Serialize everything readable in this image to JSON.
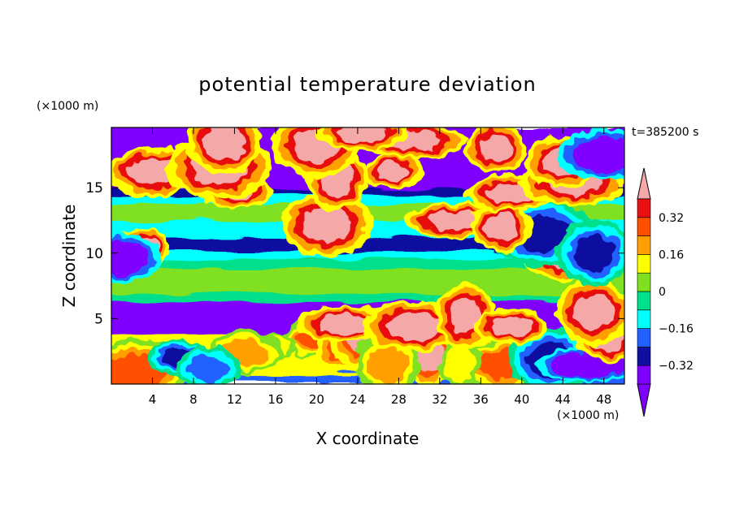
{
  "chart_data": {
    "type": "heatmap",
    "title": "potential temperature deviation",
    "xlabel": "X coordinate",
    "ylabel": "Z coordinate",
    "x_unit_label": "(×1000 m)",
    "y_unit_label": "(×1000 m)",
    "time_label": "t=385200 s",
    "xlim": [
      0,
      50
    ],
    "ylim": [
      0,
      19.6
    ],
    "x_ticks": [
      4,
      8,
      12,
      16,
      20,
      24,
      28,
      32,
      36,
      40,
      44,
      48
    ],
    "y_ticks": [
      5,
      10,
      15
    ],
    "colorbar": {
      "levels": [
        -0.4,
        -0.32,
        -0.24,
        -0.16,
        -0.08,
        0,
        0.08,
        0.16,
        0.24,
        0.32,
        0.4
      ],
      "tick_labels": [
        "0.32",
        "0.16",
        "0",
        "−0.16",
        "−0.32"
      ],
      "tick_values": [
        0.32,
        0.16,
        0,
        -0.16,
        -0.32
      ],
      "colors": [
        "#7f00ff",
        "#1010a0",
        "#2060ff",
        "#00ffff",
        "#00e08c",
        "#80e020",
        "#ffff00",
        "#ffa000",
        "#ff5000",
        "#e81010"
      ],
      "over_color": "#f5a8a8",
      "under_color": "#7f00ff",
      "extend": "both"
    },
    "bands": [
      {
        "z": [
          0,
          0.8
        ],
        "value": -0.2
      },
      {
        "z": [
          0.8,
          3.8
        ],
        "value": 0.1
      },
      {
        "z": [
          3.8,
          5.8
        ],
        "value": -0.42
      },
      {
        "z": [
          5.8,
          6.4
        ],
        "value": -0.36
      },
      {
        "z": [
          6.4,
          6.9
        ],
        "value": -0.05
      },
      {
        "z": [
          6.9,
          8.9
        ],
        "value": 0.06
      },
      {
        "z": [
          8.9,
          9.6
        ],
        "value": -0.05
      },
      {
        "z": [
          9.6,
          10.2
        ],
        "value": -0.14
      },
      {
        "z": [
          10.2,
          11.2
        ],
        "value": -0.3
      },
      {
        "z": [
          11.2,
          12.0
        ],
        "value": -0.14
      },
      {
        "z": [
          12.0,
          12.6
        ],
        "value": -0.1
      },
      {
        "z": [
          12.6,
          13.8
        ],
        "value": 0.03
      },
      {
        "z": [
          13.8,
          14.4
        ],
        "value": -0.12
      },
      {
        "z": [
          14.4,
          15.0
        ],
        "value": -0.26
      },
      {
        "z": [
          15.0,
          15.6
        ],
        "value": -0.4
      },
      {
        "z": [
          15.6,
          17.8
        ],
        "value": -0.44
      },
      {
        "z": [
          17.8,
          19.6
        ],
        "value": -0.44
      }
    ],
    "blobs": [
      {
        "x": 19.5,
        "z": 3.5,
        "value": 0.3
      },
      {
        "x": 23.0,
        "z": 2.8,
        "value": 0.26
      },
      {
        "x": 25.5,
        "z": 3.5,
        "value": 0.42
      },
      {
        "x": 29.0,
        "z": 2.6,
        "value": 0.3
      },
      {
        "x": 31.0,
        "z": 1.9,
        "value": 0.42
      },
      {
        "x": 27.0,
        "z": 1.5,
        "value": 0.2
      },
      {
        "x": 37.0,
        "z": 2.8,
        "value": 0.18
      },
      {
        "x": 38.5,
        "z": 1.5,
        "value": 0.3
      },
      {
        "x": 34.0,
        "z": 1.5,
        "value": 0.12
      },
      {
        "x": 15.5,
        "z": 2.9,
        "value": 0.1
      },
      {
        "x": 13.0,
        "z": 2.4,
        "value": 0.2
      },
      {
        "x": 2.5,
        "z": 1.0,
        "value": 0.3
      },
      {
        "x": 6.5,
        "z": 2.0,
        "value": -0.3
      },
      {
        "x": 9.5,
        "z": 1.2,
        "value": -0.2
      },
      {
        "x": 43.0,
        "z": 1.8,
        "value": -0.3
      },
      {
        "x": 46.5,
        "z": 1.5,
        "value": -0.44
      },
      {
        "x": 48.5,
        "z": 3.5,
        "value": 0.44
      },
      {
        "x": 47.0,
        "z": 5.5,
        "value": 0.44
      },
      {
        "x": 22.5,
        "z": 4.6,
        "value": 0.44
      },
      {
        "x": 29.5,
        "z": 4.4,
        "value": 0.44
      },
      {
        "x": 34.5,
        "z": 5.2,
        "value": 0.44
      },
      {
        "x": 39.0,
        "z": 4.4,
        "value": 0.44
      },
      {
        "x": 44.5,
        "z": 9.8,
        "value": 0.44
      },
      {
        "x": 42.0,
        "z": 11.5,
        "value": -0.3
      },
      {
        "x": 3.0,
        "z": 10.5,
        "value": 0.44
      },
      {
        "x": 1.0,
        "z": 9.6,
        "value": -0.44
      },
      {
        "x": 21.0,
        "z": 12.2,
        "value": 0.44
      },
      {
        "x": 33.5,
        "z": 12.5,
        "value": 0.44
      },
      {
        "x": 38.0,
        "z": 12.0,
        "value": 0.44
      },
      {
        "x": 47.0,
        "z": 10.0,
        "value": -0.3
      },
      {
        "x": 39.0,
        "z": 14.6,
        "value": 0.44
      },
      {
        "x": 45.0,
        "z": 15.5,
        "value": 0.44
      },
      {
        "x": 22.0,
        "z": 15.7,
        "value": 0.44
      },
      {
        "x": 12.0,
        "z": 14.8,
        "value": 0.44
      },
      {
        "x": 4.0,
        "z": 16.2,
        "value": 0.44
      },
      {
        "x": 10.5,
        "z": 16.6,
        "value": 0.44
      },
      {
        "x": 27.5,
        "z": 16.3,
        "value": 0.44
      },
      {
        "x": 44.0,
        "z": 17.0,
        "value": 0.44
      },
      {
        "x": 20.0,
        "z": 18.3,
        "value": 0.44
      },
      {
        "x": 29.5,
        "z": 18.6,
        "value": 0.44
      },
      {
        "x": 37.5,
        "z": 18.0,
        "value": 0.44
      },
      {
        "x": 11.0,
        "z": 18.5,
        "value": 0.44
      },
      {
        "x": 24.5,
        "z": 19.2,
        "value": 0.44
      },
      {
        "x": 48.5,
        "z": 17.5,
        "value": -0.44
      }
    ]
  }
}
